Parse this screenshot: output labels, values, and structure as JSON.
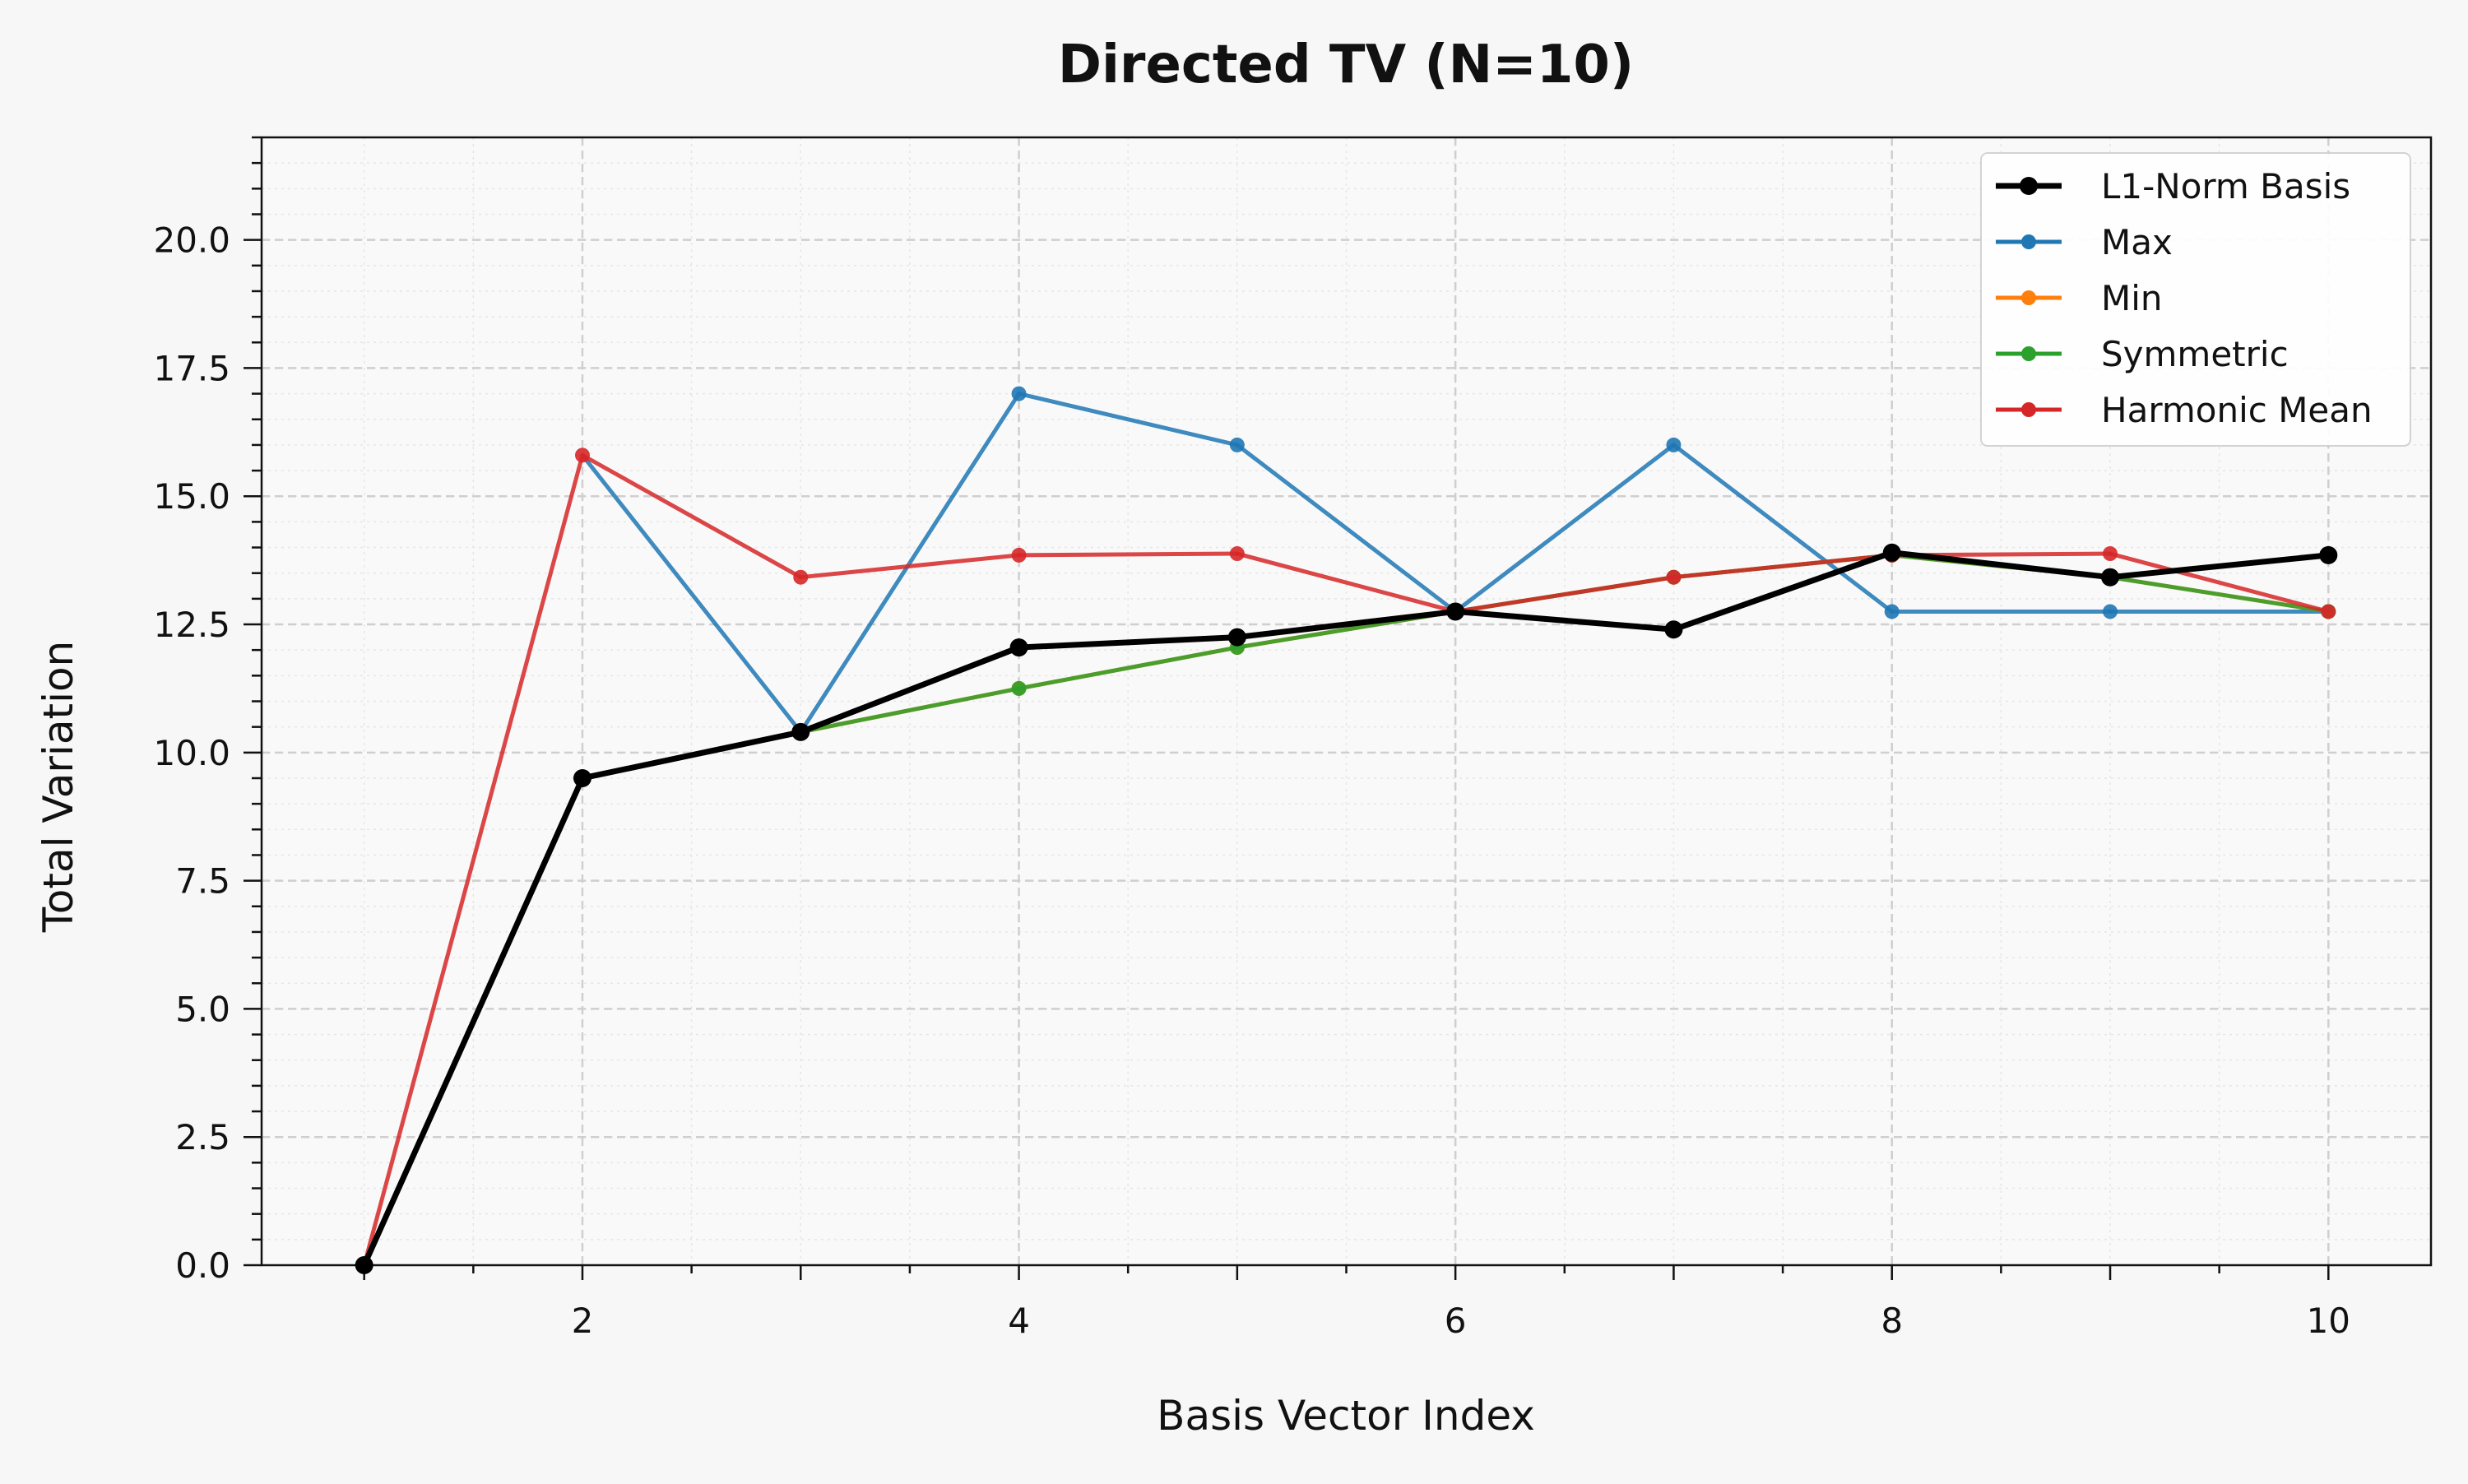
{
  "chart_data": {
    "type": "line",
    "title": "Directed TV (N=10)",
    "xlabel": "Basis Vector Index",
    "ylabel": "Total Variation",
    "xlim": [
      0.53,
      10.47
    ],
    "ylim": [
      0,
      22
    ],
    "x_ticks": [
      2,
      4,
      6,
      8,
      10
    ],
    "x_tick_labels": [
      "2",
      "4",
      "6",
      "8",
      "10"
    ],
    "y_ticks": [
      0,
      2.5,
      5,
      7.5,
      10,
      12.5,
      15,
      17.5,
      20
    ],
    "y_tick_labels": [
      "0.0",
      "2.5",
      "5.0",
      "7.5",
      "10.0",
      "12.5",
      "15.0",
      "17.5",
      "20.0"
    ],
    "grid": true,
    "legend_position": "top-right",
    "x": [
      1,
      2,
      3,
      4,
      5,
      6,
      7,
      8,
      9,
      10
    ],
    "series": [
      {
        "name": "Max",
        "color": "#1f77b4",
        "values": [
          0,
          15.8,
          10.4,
          17.0,
          16.0,
          12.75,
          16.0,
          12.75,
          12.75,
          12.75
        ],
        "hidden_segments": [
          [
            1,
            2
          ]
        ]
      },
      {
        "name": "Min",
        "color": "#ff7f0e",
        "values": [
          0,
          9.5,
          10.4,
          11.25,
          12.05,
          12.75,
          13.42,
          13.85,
          13.42,
          12.75
        ],
        "hidden_segments": []
      },
      {
        "name": "Symmetric",
        "color": "#2ca02c",
        "values": [
          0,
          9.5,
          10.4,
          11.25,
          12.05,
          12.75,
          13.42,
          13.85,
          13.42,
          12.75
        ],
        "hidden_segments": []
      },
      {
        "name": "Harmonic Mean",
        "color": "#d62728",
        "values": [
          0,
          15.8,
          13.42,
          13.85,
          13.88,
          12.75,
          13.42,
          13.85,
          13.88,
          12.75
        ],
        "hidden_segments": []
      },
      {
        "name": "L1-Norm Basis",
        "color": "#000000",
        "values": [
          0,
          9.5,
          10.4,
          12.05,
          12.25,
          12.75,
          12.4,
          13.9,
          13.42,
          13.85
        ],
        "hidden_segments": [],
        "emphasis": true
      }
    ],
    "legend_order": [
      "L1-Norm Basis",
      "Max",
      "Min",
      "Symmetric",
      "Harmonic Mean"
    ]
  }
}
